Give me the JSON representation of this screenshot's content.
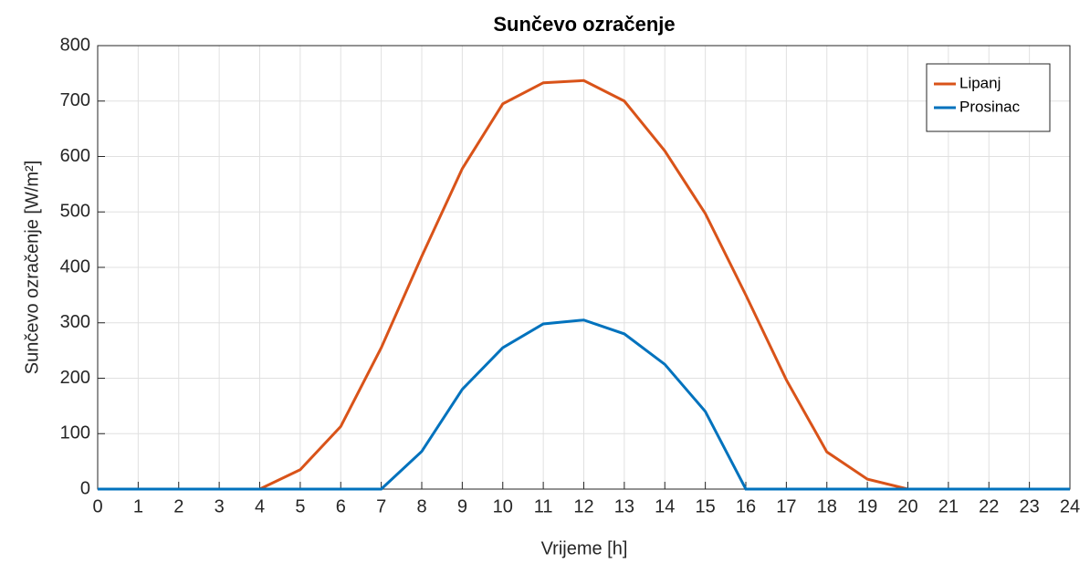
{
  "chart_data": {
    "type": "line",
    "title": "Sunčevo  ozračenje",
    "x_label": "Vrijeme [h]",
    "y_label": "Sunčevo ozračenje [W/m²]",
    "x": [
      0,
      1,
      2,
      3,
      4,
      5,
      6,
      7,
      8,
      9,
      10,
      11,
      12,
      13,
      14,
      15,
      16,
      17,
      18,
      19,
      20,
      21,
      22,
      23,
      24
    ],
    "series": [
      {
        "name": "Lipanj",
        "color": "#d95319",
        "values": [
          0,
          0,
          0,
          0,
          0,
          35,
          113,
          255,
          420,
          578,
          695,
          733,
          737,
          700,
          610,
          497,
          350,
          197,
          67,
          18,
          0,
          0,
          0,
          0,
          0
        ]
      },
      {
        "name": "Prosinac",
        "color": "#0072bd",
        "values": [
          0,
          0,
          0,
          0,
          0,
          0,
          0,
          0,
          68,
          180,
          255,
          298,
          305,
          280,
          225,
          140,
          0,
          0,
          0,
          0,
          0,
          0,
          0,
          0,
          0
        ]
      }
    ],
    "xlim": [
      0,
      24
    ],
    "xticks": [
      0,
      1,
      2,
      3,
      4,
      5,
      6,
      7,
      8,
      9,
      10,
      11,
      12,
      13,
      14,
      15,
      16,
      17,
      18,
      19,
      20,
      21,
      22,
      23,
      24
    ],
    "ylim": [
      0,
      800
    ],
    "yticks": [
      0,
      100,
      200,
      300,
      400,
      500,
      600,
      700,
      800
    ],
    "grid": true,
    "legend": "top-right"
  }
}
